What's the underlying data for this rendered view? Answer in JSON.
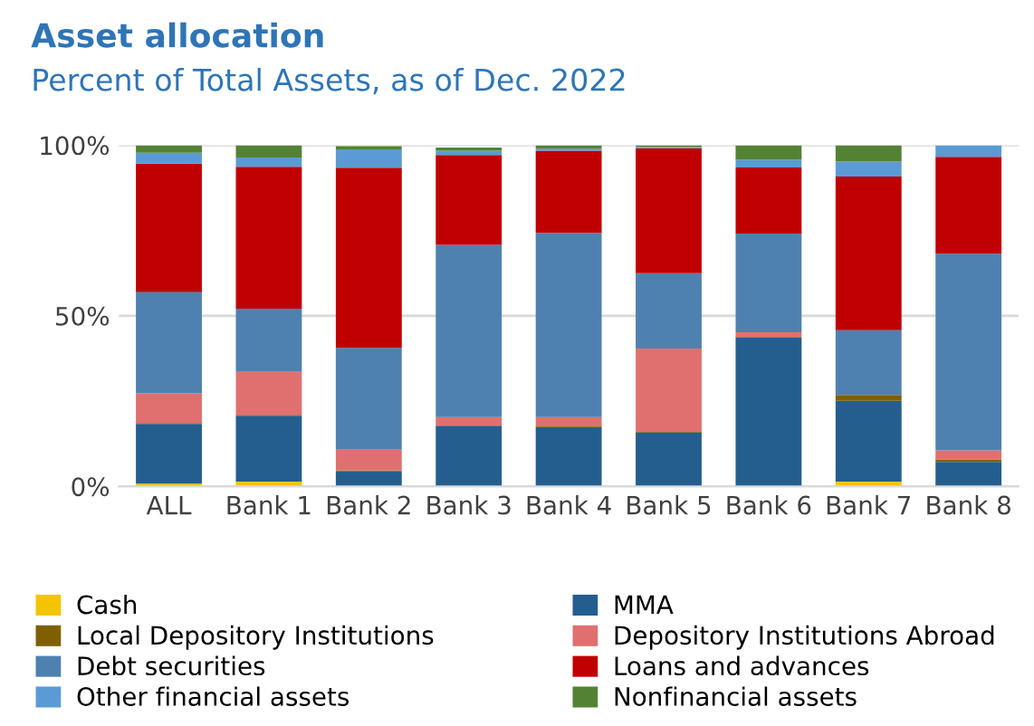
{
  "chart_data": {
    "type": "bar",
    "stacked": true,
    "title": "Asset allocation",
    "subtitle": "Percent of Total Assets, as of Dec. 2022",
    "categories": [
      "ALL",
      "Bank 1",
      "Bank 2",
      "Bank 3",
      "Bank 4",
      "Bank 5",
      "Bank 6",
      "Bank 7",
      "Bank 8"
    ],
    "series": [
      {
        "name": "Cash",
        "color": "#f5c400",
        "values": [
          0.8,
          1.4,
          null,
          null,
          0,
          0,
          0,
          1.4,
          0
        ]
      },
      {
        "name": "MMA",
        "color": "#245e8f",
        "values": [
          17.5,
          19.3,
          4.4,
          17.8,
          17.4,
          15.8,
          43.6,
          23.7,
          7.2
        ]
      },
      {
        "name": "Local Depository Institutions",
        "color": "#7f6000",
        "values": [
          0.3,
          0.3,
          0.3,
          null,
          0.2,
          0.2,
          0.2,
          1.7,
          0.7
        ]
      },
      {
        "name": "Depository Institutions Abroad",
        "color": "#e07070",
        "values": [
          8.7,
          12.6,
          6.1,
          2.5,
          2.7,
          24.4,
          1.4,
          0,
          2.7
        ]
      },
      {
        "name": "Debt securities",
        "color": "#4f81b0",
        "values": [
          29.6,
          18.5,
          29.8,
          50.5,
          54.0,
          22.1,
          28.9,
          19.0,
          57.6
        ]
      },
      {
        "name": "Loans and advances",
        "color": "#c00000",
        "values": [
          37.7,
          41.6,
          52.8,
          26.3,
          24.1,
          36.6,
          19.4,
          45.0,
          28.4
        ]
      },
      {
        "name": "Other financial assets",
        "color": "#5b9bd5",
        "values": [
          3.2,
          2.7,
          5.4,
          1.3,
          0.6,
          0.4,
          2.2,
          4.4,
          3.4
        ]
      },
      {
        "name": "Nonfinancial assets",
        "color": "#548235",
        "values": [
          2.2,
          3.6,
          0.9,
          0.9,
          1.0,
          0.5,
          4.3,
          4.8,
          0
        ]
      }
    ],
    "ylim": [
      0,
      100
    ],
    "yticks": [
      {
        "value": 0,
        "label": "0%"
      },
      {
        "value": 50,
        "label": "50%"
      },
      {
        "value": 100,
        "label": "100%"
      }
    ],
    "grid": "y",
    "legend": "bottom"
  }
}
